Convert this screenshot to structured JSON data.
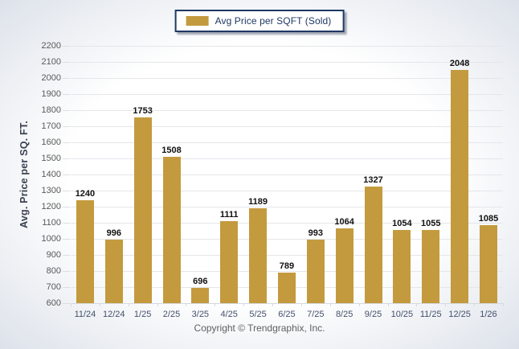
{
  "legend": {
    "label": "Avg Price per SQFT (Sold)",
    "swatch_color": "#c49a3e"
  },
  "y_axis": {
    "title": "Avg. Price per SQ. FT."
  },
  "footer": {
    "copyright": "Copyright © Trendgraphix, Inc."
  },
  "chart_data": {
    "type": "bar",
    "title": "",
    "xlabel": "",
    "ylabel": "Avg. Price per SQ. FT.",
    "legend_entries": [
      "Avg Price per SQFT (Sold)"
    ],
    "legend_position": "top-center",
    "grid": true,
    "ylim": [
      600,
      2200
    ],
    "ytick_step": 100,
    "bar_color": "#c49a3e",
    "categories": [
      "11/24",
      "12/24",
      "1/25",
      "2/25",
      "3/25",
      "4/25",
      "5/25",
      "6/25",
      "7/25",
      "8/25",
      "9/25",
      "10/25",
      "11/25",
      "12/25",
      "1/26"
    ],
    "values": [
      1240,
      996,
      1753,
      1508,
      696,
      1111,
      1189,
      789,
      993,
      1064,
      1327,
      1054,
      1055,
      2048,
      1085
    ]
  }
}
